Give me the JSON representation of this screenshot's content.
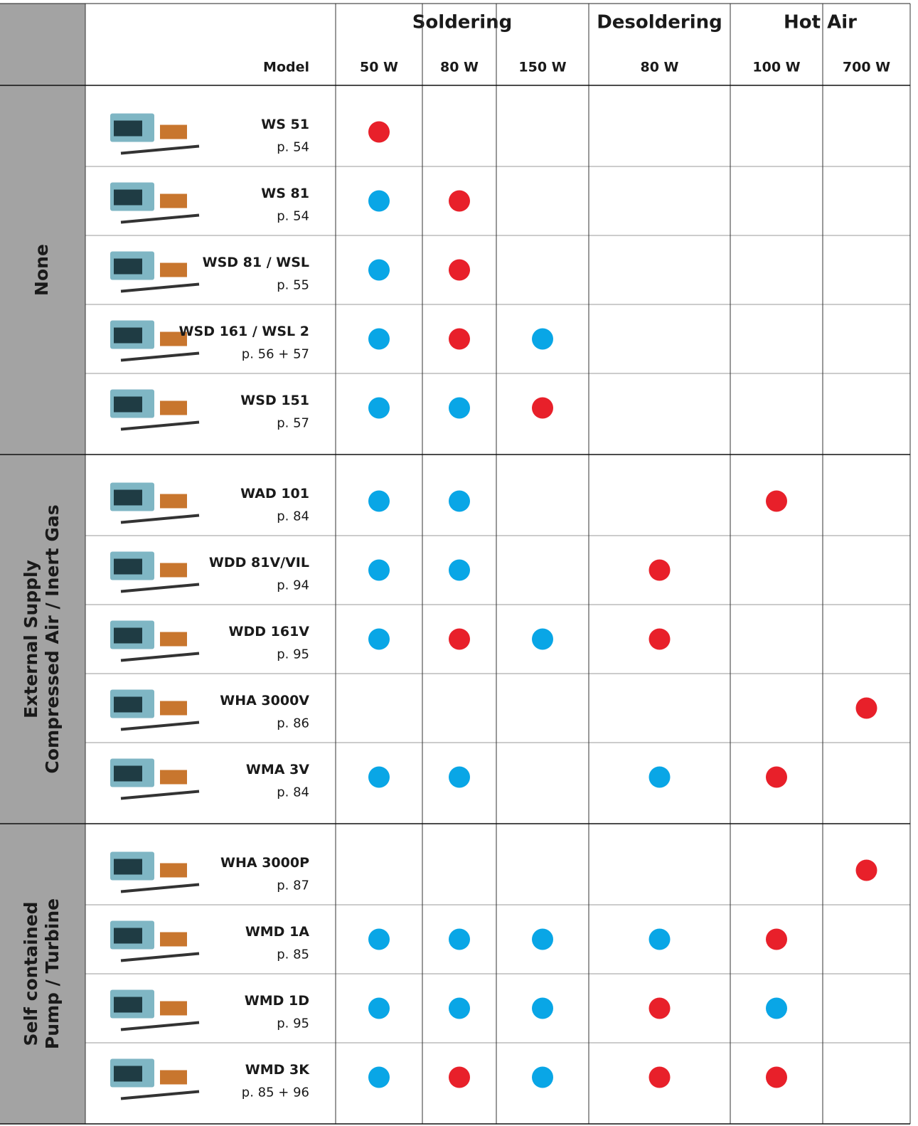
{
  "header": {
    "model_label": "Model",
    "column_groups": [
      {
        "title": "Soldering",
        "columns": [
          "50 W",
          "80 W",
          "150 W"
        ]
      },
      {
        "title": "Desoldering",
        "columns": [
          "80 W"
        ]
      },
      {
        "title": "Hot Air",
        "columns": [
          "100 W",
          "700 W"
        ]
      }
    ]
  },
  "groups": [
    {
      "title": [
        "None"
      ],
      "rows": [
        {
          "model": "WS 51",
          "page": "p. 54",
          "cells": [
            "#e8202a",
            null,
            null,
            null,
            null,
            null
          ]
        },
        {
          "model": "WS 81",
          "page": "p. 54",
          "cells": [
            "#09a6e6",
            "#e8202a",
            null,
            null,
            null,
            null
          ]
        },
        {
          "model": "WSD 81 / WSL",
          "page": "p. 55",
          "cells": [
            "#09a6e6",
            "#e8202a",
            null,
            null,
            null,
            null
          ]
        },
        {
          "model": "WSD 161 / WSL 2",
          "page": "p. 56 + 57",
          "cells": [
            "#09a6e6",
            "#e8202a",
            "#09a6e6",
            null,
            null,
            null
          ]
        },
        {
          "model": "WSD 151",
          "page": "p. 57",
          "cells": [
            "#09a6e6",
            "#09a6e6",
            "#e8202a",
            null,
            null,
            null
          ]
        }
      ]
    },
    {
      "title": [
        "External Supply",
        "Compressed Air / Inert Gas"
      ],
      "rows": [
        {
          "model": "WAD 101",
          "page": "p. 84",
          "cells": [
            "#09a6e6",
            "#09a6e6",
            null,
            null,
            "#e8202a",
            null
          ]
        },
        {
          "model": "WDD 81V/VIL",
          "page": "p. 94",
          "cells": [
            "#09a6e6",
            "#09a6e6",
            null,
            "#e8202a",
            null,
            null
          ]
        },
        {
          "model": "WDD 161V",
          "page": "p. 95",
          "cells": [
            "#09a6e6",
            "#e8202a",
            "#09a6e6",
            "#e8202a",
            null,
            null
          ]
        },
        {
          "model": "WHA 3000V",
          "page": "p. 86",
          "cells": [
            null,
            null,
            null,
            null,
            null,
            "#e8202a"
          ]
        },
        {
          "model": "WMA 3V",
          "page": "p. 84",
          "cells": [
            "#09a6e6",
            "#09a6e6",
            null,
            "#09a6e6",
            "#e8202a",
            null
          ]
        }
      ]
    },
    {
      "title": [
        "Self contained",
        "Pump / Turbine"
      ],
      "rows": [
        {
          "model": "WHA 3000P",
          "page": "p. 87",
          "cells": [
            null,
            null,
            null,
            null,
            null,
            "#e8202a"
          ]
        },
        {
          "model": "WMD 1A",
          "page": "p. 85",
          "cells": [
            "#09a6e6",
            "#09a6e6",
            "#09a6e6",
            "#09a6e6",
            "#e8202a",
            null
          ]
        },
        {
          "model": "WMD 1D",
          "page": "p. 95",
          "cells": [
            "#09a6e6",
            "#09a6e6",
            "#09a6e6",
            "#e8202a",
            "#09a6e6",
            null
          ]
        },
        {
          "model": "WMD 3K",
          "page": "p. 85 + 96",
          "cells": [
            "#09a6e6",
            "#e8202a",
            "#09a6e6",
            "#e8202a",
            "#e8202a",
            null
          ]
        }
      ]
    }
  ]
}
